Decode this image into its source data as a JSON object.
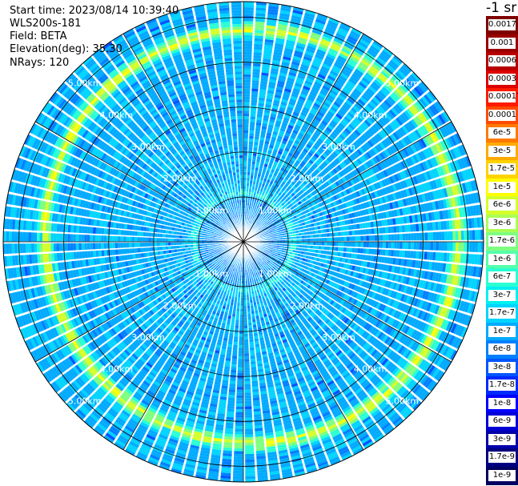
{
  "header": {
    "start_time": "Start time: 2023/08/14 10:39:40",
    "device": "WLS200s-181",
    "field": "Field: BETA",
    "elevation": "Elevation(deg): 35.30",
    "nrays": "NRays: 120"
  },
  "colorbar": {
    "title": "-1 sr",
    "levels": [
      {
        "label": "0.0017",
        "color": "#7f0000"
      },
      {
        "label": "0.001",
        "color": "#9a0000"
      },
      {
        "label": "0.0006",
        "color": "#b80000"
      },
      {
        "label": "0.0003",
        "color": "#dc0000"
      },
      {
        "label": "0.00017",
        "color": "#ff1a00"
      },
      {
        "label": "0.0001",
        "color": "#ff4a00"
      },
      {
        "label": "6e-5",
        "color": "#ff7a00"
      },
      {
        "label": "3e-5",
        "color": "#ffaa00"
      },
      {
        "label": "1.7e-5",
        "color": "#ffd200"
      },
      {
        "label": "1e-5",
        "color": "#ffff00"
      },
      {
        "label": "6e-6",
        "color": "#d4ff2a"
      },
      {
        "label": "3e-6",
        "color": "#aaff55"
      },
      {
        "label": "1.7e-6",
        "color": "#7fff80"
      },
      {
        "label": "1e-6",
        "color": "#55ffaa"
      },
      {
        "label": "6e-7",
        "color": "#2affd4"
      },
      {
        "label": "3e-7",
        "color": "#00f0f0"
      },
      {
        "label": "1.7e-7",
        "color": "#00d4ff"
      },
      {
        "label": "1e-7",
        "color": "#00aaff"
      },
      {
        "label": "6e-8",
        "color": "#0080ff"
      },
      {
        "label": "3e-8",
        "color": "#0055ff"
      },
      {
        "label": "1.7e-8",
        "color": "#002aff"
      },
      {
        "label": "1e-8",
        "color": "#0000ff"
      },
      {
        "label": "6e-9",
        "color": "#0000d4"
      },
      {
        "label": "3e-9",
        "color": "#0000aa"
      },
      {
        "label": "1.7e-9",
        "color": "#000080"
      },
      {
        "label": "1e-9",
        "color": "#000060"
      }
    ]
  },
  "chart_data": {
    "type": "heatmap",
    "projection": "polar (PPI scan)",
    "field": "BETA",
    "n_rays": 120,
    "range_rings_km": [
      1,
      2,
      3,
      4,
      5
    ],
    "range_ring_labels": [
      "1.00km",
      "2.00km",
      "3.00km",
      "4.00km",
      "5.00km"
    ],
    "spoke_angles_deg": [
      0,
      30,
      60,
      90,
      120,
      150,
      180,
      210,
      240,
      270,
      300,
      330
    ],
    "max_range_km": 5.35,
    "background_beta_sr": "3e-8 to 1e-7",
    "features": [
      {
        "name": "inner ring",
        "range_km": 1.1,
        "beta_sr": "1e-7"
      },
      {
        "name": "bright ring",
        "range_km": 4.6,
        "beta_sr": "1.7e-6 to 6e-6"
      }
    ]
  }
}
